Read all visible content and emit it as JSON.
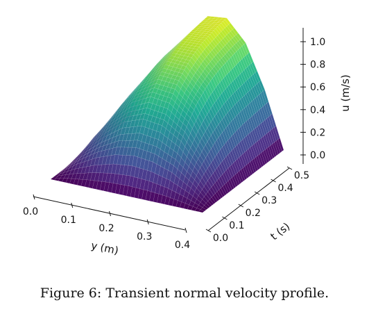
{
  "chart_data": {
    "type": "surface",
    "colormap": "viridis",
    "x": {
      "label": "y (m)",
      "range": [
        0,
        0.4
      ],
      "ticks": [
        0,
        0.1,
        0.2,
        0.3,
        0.4
      ],
      "tick_labels": [
        "0.0",
        "0.1",
        "0.2",
        "0.3",
        "0.4"
      ]
    },
    "y": {
      "label": "t (s)",
      "range": [
        0,
        0.5
      ],
      "ticks": [
        0,
        0.1,
        0.2,
        0.3,
        0.4,
        0.5
      ],
      "tick_labels": [
        "0.0",
        "0.1",
        "0.2",
        "0.3",
        "0.4",
        "0.5"
      ]
    },
    "z": {
      "label": "u (m/s)",
      "range": [
        0,
        1.1
      ],
      "ticks": [
        0,
        0.2,
        0.4,
        0.6,
        0.8,
        1.0
      ],
      "tick_labels": [
        "0.0",
        "0.2",
        "0.4",
        "0.6",
        "0.8",
        "1.0"
      ]
    },
    "surface": {
      "y_values": [
        0,
        0.05,
        0.1,
        0.15,
        0.2,
        0.25,
        0.3,
        0.35,
        0.4
      ],
      "t_values": [
        0,
        0.05,
        0.1,
        0.15,
        0.2,
        0.25,
        0.3,
        0.35,
        0.4,
        0.45,
        0.5
      ],
      "u_values": [
        [
          0.0,
          0.0,
          0.0,
          0.0,
          0.0,
          0.0,
          0.0,
          0.0,
          0.0
        ],
        [
          0.0,
          0.13,
          0.23,
          0.3,
          0.33,
          0.31,
          0.25,
          0.14,
          0.0
        ],
        [
          0.0,
          0.2,
          0.36,
          0.49,
          0.55,
          0.53,
          0.43,
          0.24,
          0.0
        ],
        [
          0.0,
          0.24,
          0.45,
          0.62,
          0.71,
          0.69,
          0.56,
          0.31,
          0.0
        ],
        [
          0.0,
          0.26,
          0.5,
          0.7,
          0.82,
          0.81,
          0.66,
          0.37,
          0.0
        ],
        [
          0.0,
          0.27,
          0.53,
          0.75,
          0.9,
          0.89,
          0.73,
          0.41,
          0.0
        ],
        [
          0.0,
          0.28,
          0.55,
          0.78,
          0.95,
          0.95,
          0.78,
          0.44,
          0.0
        ],
        [
          0.0,
          0.28,
          0.56,
          0.8,
          0.98,
          0.99,
          0.81,
          0.46,
          0.0
        ],
        [
          0.0,
          0.28,
          0.56,
          0.81,
          1.0,
          1.01,
          0.83,
          0.47,
          0.0
        ],
        [
          0.0,
          0.28,
          0.57,
          0.82,
          1.01,
          1.03,
          0.85,
          0.48,
          0.0
        ],
        [
          0.0,
          0.28,
          0.57,
          0.82,
          1.02,
          1.04,
          0.86,
          0.49,
          0.0
        ]
      ]
    }
  },
  "caption": "Figure 6: Transient normal velocity profile."
}
